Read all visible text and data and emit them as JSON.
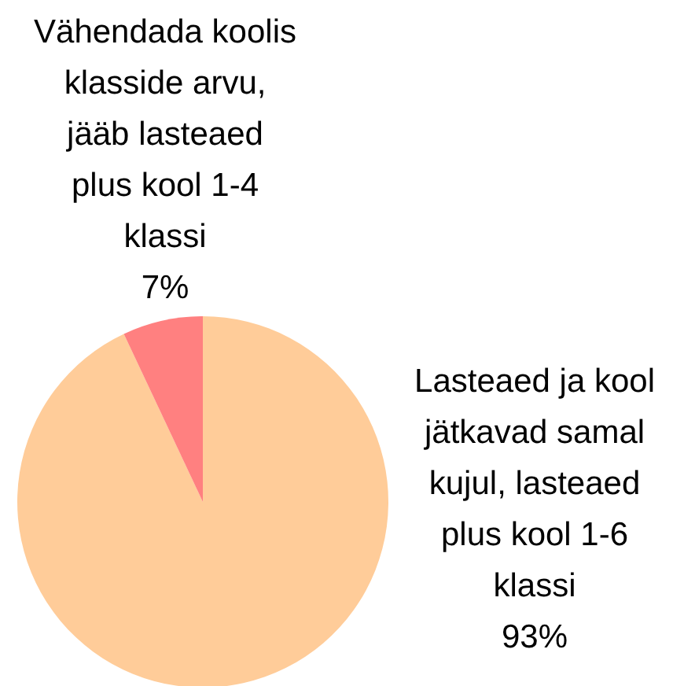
{
  "chart_data": {
    "type": "pie",
    "categories": [
      "Lasteaed ja kool jätkavad samal kujul, lasteaed plus kool 1-6 klassi",
      "Vähendada koolis klasside arvu, jääb lasteaed plus kool 1-4 klassi"
    ],
    "values": [
      93,
      7
    ],
    "colors": [
      "#ffcc99",
      "#ff8080"
    ],
    "value_labels": [
      "93%",
      "7%"
    ]
  }
}
